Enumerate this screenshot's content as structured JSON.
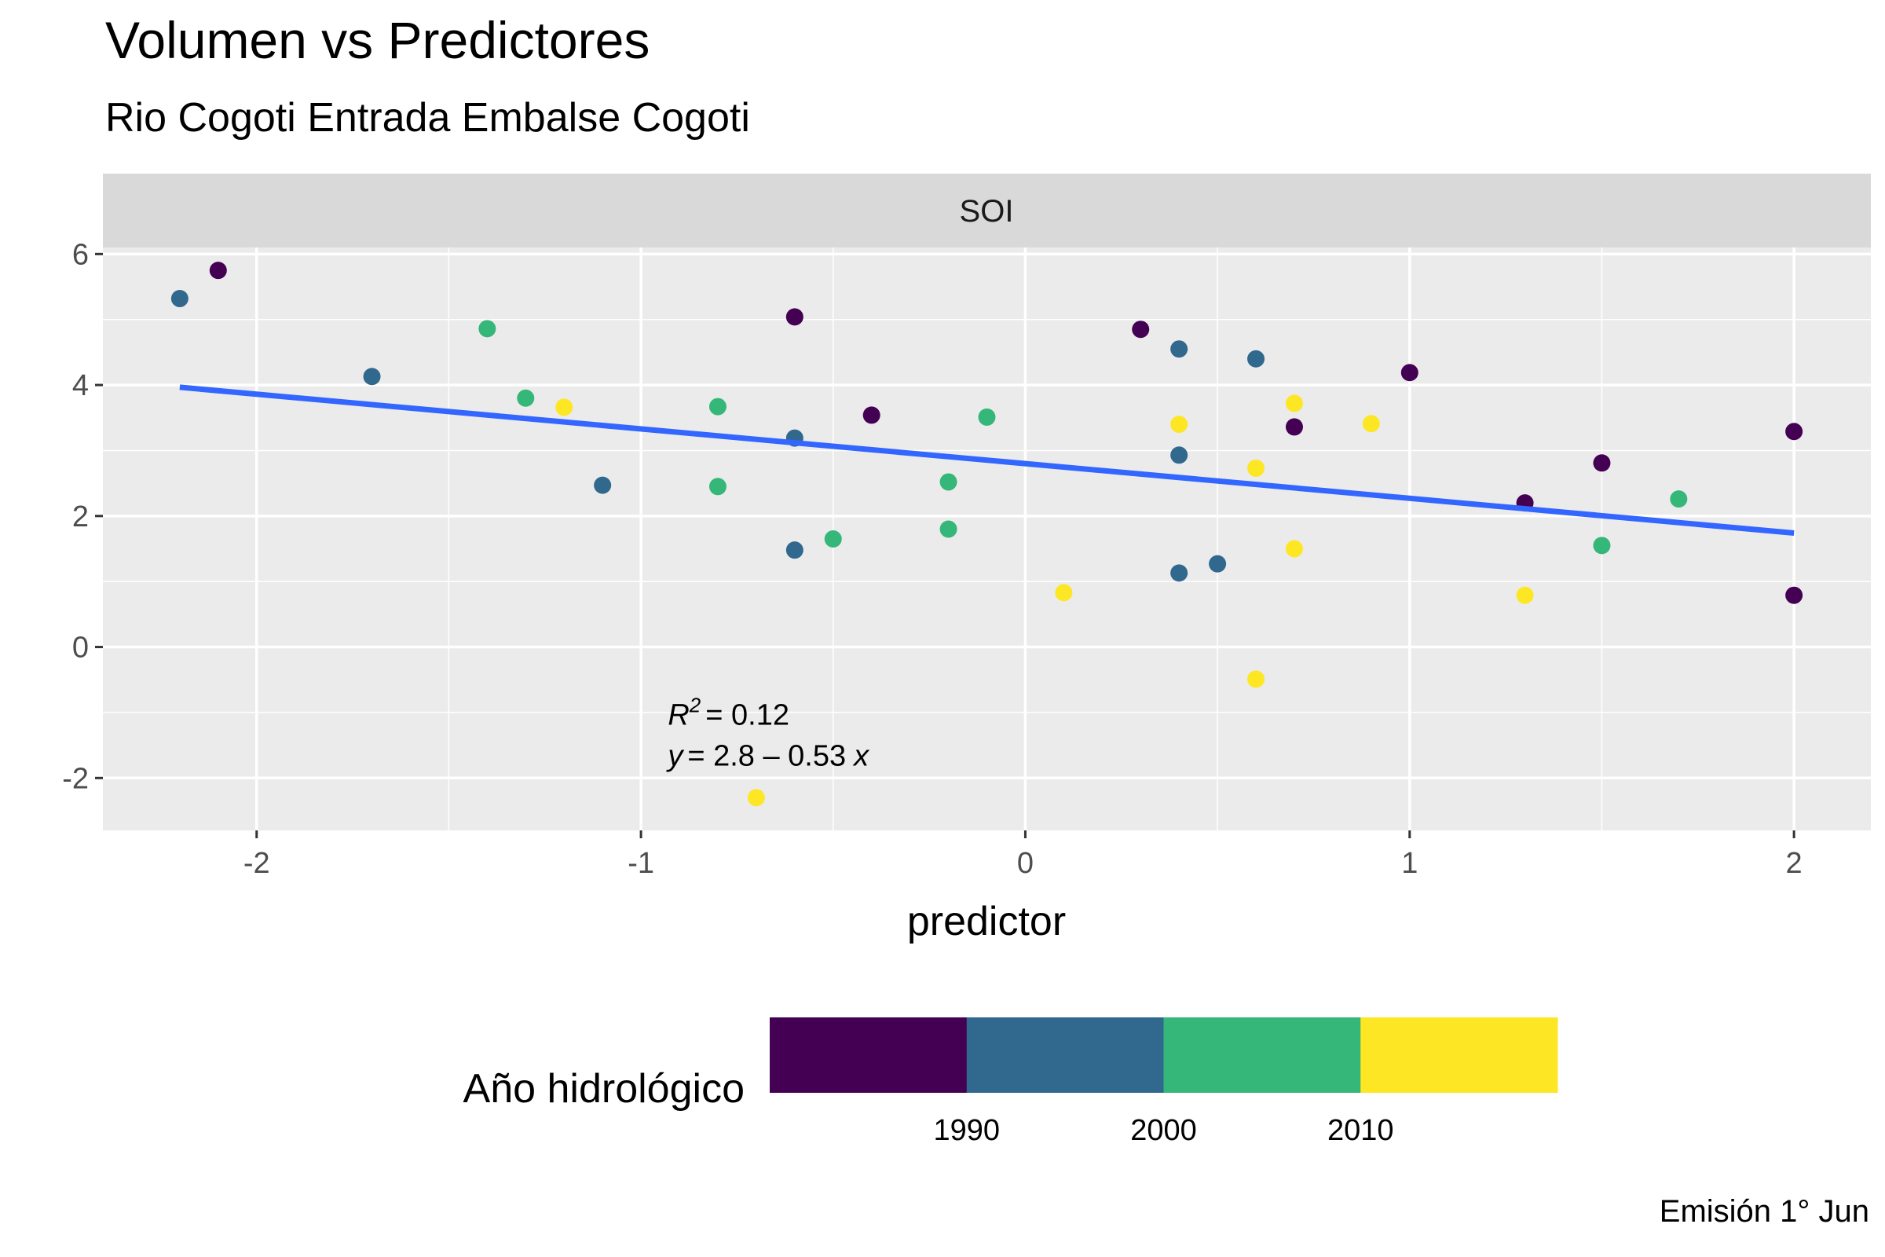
{
  "title": "Volumen vs Predictores",
  "subtitle": "Rio Cogoti Entrada Embalse Cogoti",
  "caption": "Emisión 1° Jun",
  "colors": {
    "panel_bg": "#ebebeb",
    "strip_bg": "#d9d9d9",
    "grid": "#ffffff",
    "fit_line": "#3366ff",
    "c1980s": "#440154",
    "c1990s": "#31688e",
    "c2000s": "#35b779",
    "c2010s": "#fde725"
  },
  "chart_data": {
    "type": "scatter",
    "facet": "SOI",
    "xlabel": "predictor",
    "ylabel": "",
    "xlim": [
      -2.4,
      2.2
    ],
    "ylim": [
      -2.8,
      6.1
    ],
    "xticks": [
      -2,
      -1,
      0,
      1,
      2
    ],
    "yticks": [
      -2,
      0,
      2,
      4,
      6
    ],
    "grid": true,
    "color_scale": {
      "title": "Año hidrológico",
      "bins": [
        {
          "color_key": "c1980s"
        },
        {
          "color_key": "c1990s"
        },
        {
          "color_key": "c2000s"
        },
        {
          "color_key": "c2010s"
        }
      ],
      "breaks": [
        "1990",
        "2000",
        "2010"
      ],
      "position": "bottom"
    },
    "fit": {
      "intercept": 2.8,
      "slope": -0.53,
      "x_range": [
        -2.2,
        2.0
      ],
      "r2_text": "= 0.12",
      "eq_text": "= 2.8 – 0.53",
      "r2_label": "R",
      "r2_sup": "2",
      "eq_y": "y",
      "eq_x": "x",
      "label_x": -0.93,
      "label_y": -1.4
    },
    "points": [
      {
        "x": -2.2,
        "y": 5.32,
        "g": "c1990s"
      },
      {
        "x": -2.1,
        "y": 5.75,
        "g": "c1980s"
      },
      {
        "x": -1.7,
        "y": 4.13,
        "g": "c1990s"
      },
      {
        "x": -1.4,
        "y": 4.86,
        "g": "c2000s"
      },
      {
        "x": -1.3,
        "y": 3.8,
        "g": "c2000s"
      },
      {
        "x": -1.2,
        "y": 3.66,
        "g": "c2010s"
      },
      {
        "x": -1.1,
        "y": 2.47,
        "g": "c1990s"
      },
      {
        "x": -0.8,
        "y": 3.67,
        "g": "c2000s"
      },
      {
        "x": -0.8,
        "y": 2.45,
        "g": "c2000s"
      },
      {
        "x": -0.7,
        "y": -2.3,
        "g": "c2010s"
      },
      {
        "x": -0.6,
        "y": 5.04,
        "g": "c1980s"
      },
      {
        "x": -0.6,
        "y": 3.19,
        "g": "c1990s"
      },
      {
        "x": -0.6,
        "y": 1.48,
        "g": "c1990s"
      },
      {
        "x": -0.5,
        "y": 1.65,
        "g": "c2000s"
      },
      {
        "x": -0.4,
        "y": 3.54,
        "g": "c1980s"
      },
      {
        "x": -0.2,
        "y": 2.52,
        "g": "c2000s"
      },
      {
        "x": -0.2,
        "y": 1.8,
        "g": "c2000s"
      },
      {
        "x": -0.1,
        "y": 3.51,
        "g": "c2000s"
      },
      {
        "x": 0.1,
        "y": 0.83,
        "g": "c2010s"
      },
      {
        "x": 0.3,
        "y": 4.85,
        "g": "c1980s"
      },
      {
        "x": 0.4,
        "y": 4.55,
        "g": "c1990s"
      },
      {
        "x": 0.4,
        "y": 3.4,
        "g": "c2010s"
      },
      {
        "x": 0.4,
        "y": 2.93,
        "g": "c1990s"
      },
      {
        "x": 0.4,
        "y": 1.13,
        "g": "c1990s"
      },
      {
        "x": 0.5,
        "y": 1.27,
        "g": "c1990s"
      },
      {
        "x": 0.6,
        "y": 4.4,
        "g": "c1990s"
      },
      {
        "x": 0.6,
        "y": 2.73,
        "g": "c2010s"
      },
      {
        "x": 0.6,
        "y": -0.49,
        "g": "c2010s"
      },
      {
        "x": 0.7,
        "y": 3.72,
        "g": "c2010s"
      },
      {
        "x": 0.7,
        "y": 3.36,
        "g": "c1980s"
      },
      {
        "x": 0.7,
        "y": 1.5,
        "g": "c2010s"
      },
      {
        "x": 0.9,
        "y": 3.41,
        "g": "c2010s"
      },
      {
        "x": 1.0,
        "y": 4.19,
        "g": "c1980s"
      },
      {
        "x": 1.3,
        "y": 2.2,
        "g": "c1980s"
      },
      {
        "x": 1.3,
        "y": 0.79,
        "g": "c2010s"
      },
      {
        "x": 1.5,
        "y": 2.81,
        "g": "c1980s"
      },
      {
        "x": 1.5,
        "y": 1.55,
        "g": "c2000s"
      },
      {
        "x": 1.7,
        "y": 2.26,
        "g": "c2000s"
      },
      {
        "x": 2.0,
        "y": 3.29,
        "g": "c1980s"
      },
      {
        "x": 2.0,
        "y": 0.79,
        "g": "c1980s"
      }
    ]
  }
}
